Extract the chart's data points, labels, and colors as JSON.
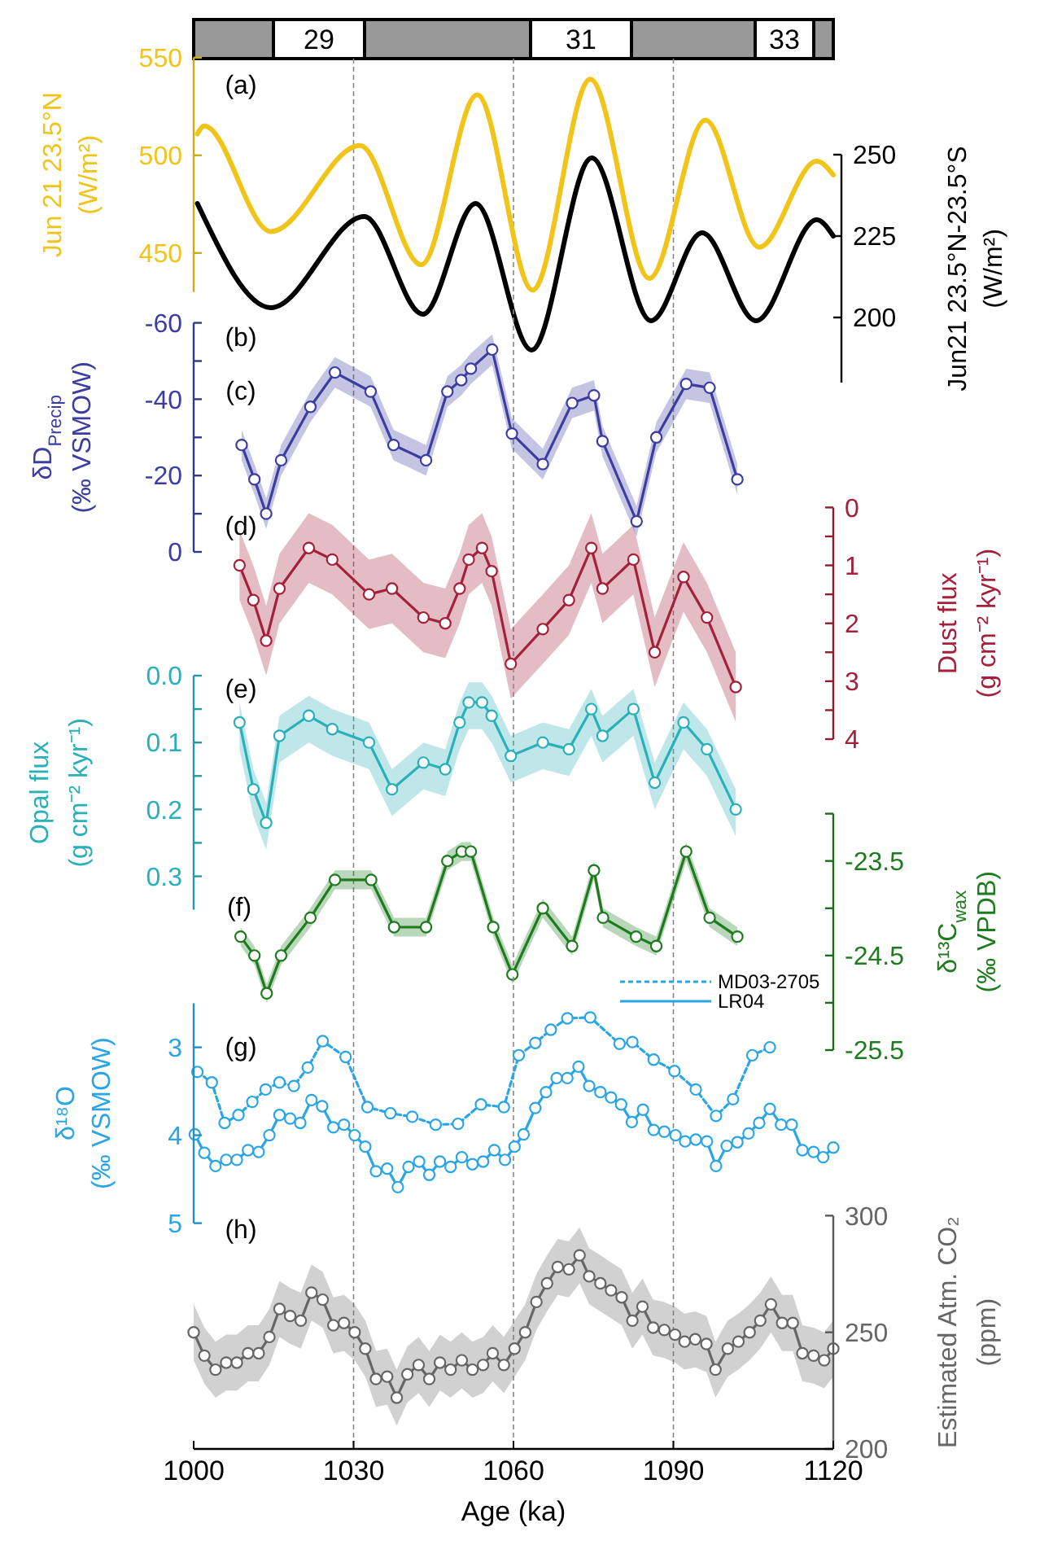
{
  "chart_data": [
    {
      "type": "other",
      "annotations": [
        "29",
        "31",
        "33"
      ]
    },
    {
      "type": "line",
      "xlim": [
        1000,
        1120
      ],
      "ylim": [
        430,
        550
      ],
      "yticks": [
        450,
        500,
        550
      ],
      "y2lim": [
        180,
        250
      ],
      "y2ticks": [
        200,
        225,
        250
      ],
      "ylabel": "Jun 21 23.5°N (W/m²)",
      "y2label": "Jun21 23.5°N-23.5°S (W/m²)",
      "tick_labels": "y",
      "annotations": [
        "(a)"
      ],
      "ref_lines": [
        {
          "axis": "x",
          "value": 1030,
          "color": "#888888",
          "line_style": "dashed"
        },
        {
          "axis": "x",
          "value": 1060,
          "color": "#888888",
          "line_style": "dashed"
        },
        {
          "axis": "x",
          "value": 1090,
          "color": "#888888",
          "line_style": "dashed"
        }
      ],
      "series": [
        {
          "color": "#f0c419",
          "x": [
            1000.7,
            1002,
            1014.5,
            1031.2,
            1042.7,
            1053.2,
            1063.6,
            1074.4,
            1085.5,
            1096,
            1106.1,
            1116.9,
            1120
          ],
          "values": [
            511,
            515,
            461,
            505,
            444,
            531,
            431,
            539,
            437,
            518,
            453,
            497,
            490
          ]
        },
        {
          "color": "#000000",
          "axis": "y2",
          "x": [
            1000.7,
            1014.5,
            1032,
            1043,
            1052.9,
            1063.4,
            1074.7,
            1085.8,
            1095.4,
            1105.5,
            1116.9,
            1120
          ],
          "values": [
            235,
            203,
            231,
            201,
            235,
            190,
            249,
            199,
            226,
            199,
            230,
            225
          ]
        }
      ]
    },
    {
      "type": "line",
      "xlim": [
        1000,
        1120
      ],
      "ylim": [
        0,
        -60
      ],
      "yticks": [
        -60,
        {
          "value": -50,
          "label": null
        },
        -40,
        {
          "value": -30,
          "label": null
        },
        -20,
        {
          "value": -10,
          "label": null
        },
        0
      ],
      "ylabel": "δD$_{Precip}$ (‰ VSMOW)",
      "tick_labels": "y",
      "marker": "circle",
      "annotations": [
        "(b)",
        "(c)"
      ],
      "ref_lines": [
        {
          "axis": "x",
          "value": 1030,
          "color": "#888888",
          "line_style": "dashed"
        },
        {
          "axis": "x",
          "value": 1060,
          "color": "#888888",
          "line_style": "dashed"
        },
        {
          "axis": "x",
          "value": 1090,
          "color": "#888888",
          "line_style": "dashed"
        }
      ],
      "series": [
        {
          "color": "#3b3ea0",
          "x": [
            1009,
            1011.4,
            1013.6,
            1016.4,
            1021.9,
            1026.5,
            1033.2,
            1037.5,
            1043.6,
            1047.6,
            1050.2,
            1052,
            1056,
            1059.7,
            1065.5,
            1071,
            1075.1,
            1076.7,
            1083.1,
            1086.8,
            1092.4,
            1096.8,
            1102
          ],
          "values": [
            -28,
            -19,
            -10,
            -24,
            -38,
            -47,
            -42,
            -28,
            -24,
            -42,
            -45,
            -48,
            -53,
            -31,
            -23,
            -39,
            -41,
            -29,
            -8,
            -30,
            -44,
            -43,
            -19
          ],
          "lower": [
            -32,
            -23,
            -14,
            -28,
            -42,
            -51,
            -46,
            -32,
            -28,
            -46,
            -49,
            -52,
            -57,
            -35,
            -27,
            -43,
            -45,
            -33,
            -12,
            -34,
            -48,
            -47,
            -23
          ],
          "upper": [
            -24,
            -15,
            -6,
            -20,
            -34,
            -43,
            -38,
            -24,
            -20,
            -38,
            -41,
            -44,
            -49,
            -27,
            -19,
            -35,
            -37,
            -25,
            -4,
            -26,
            -40,
            -39,
            -15
          ]
        }
      ]
    },
    {
      "type": "line",
      "xlim": [
        1000,
        1120
      ],
      "y2lim": [
        4,
        0
      ],
      "y2ticks": [
        0,
        {
          "value": 0.5,
          "label": null
        },
        1,
        {
          "value": 1.5,
          "label": null
        },
        2,
        {
          "value": 2.5,
          "label": null
        },
        3,
        {
          "value": 3.5,
          "label": null
        },
        4
      ],
      "y2label": "Dust flux (g cm⁻² kyr⁻¹)",
      "tick_labels": "y",
      "marker": "circle",
      "annotations": [
        "(d)"
      ],
      "ref_lines": [
        {
          "axis": "x",
          "value": 1030,
          "color": "#888888",
          "line_style": "dashed"
        },
        {
          "axis": "x",
          "value": 1060,
          "color": "#888888",
          "line_style": "dashed"
        },
        {
          "axis": "x",
          "value": 1090,
          "color": "#888888",
          "line_style": "dashed"
        }
      ],
      "series": [
        {
          "color": "#a3213a",
          "axis": "y2",
          "x": [
            1008.6,
            1011.2,
            1013.6,
            1016.1,
            1021.6,
            1026,
            1032.9,
            1037.2,
            1043.1,
            1047.2,
            1049.9,
            1051.6,
            1054.1,
            1055.9,
            1059.5,
            1065.5,
            1070.4,
            1074.6,
            1076.7,
            1082.5,
            1086.5,
            1091.9,
            1096.3,
            1101.7
          ],
          "values": [
            1.0,
            1.6,
            2.3,
            1.4,
            0.7,
            0.9,
            1.5,
            1.4,
            1.9,
            2.0,
            1.4,
            0.9,
            0.7,
            1.1,
            2.7,
            2.1,
            1.6,
            0.7,
            1.4,
            0.9,
            2.5,
            1.2,
            1.9,
            3.1
          ],
          "lower": [
            0.4,
            1.0,
            1.7,
            0.8,
            0.1,
            0.3,
            0.9,
            0.8,
            1.3,
            1.4,
            0.8,
            0.3,
            0.1,
            0.5,
            2.1,
            1.5,
            1.0,
            0.1,
            0.8,
            0.3,
            1.9,
            0.6,
            1.3,
            2.5
          ],
          "upper": [
            1.6,
            2.2,
            2.9,
            2.0,
            1.3,
            1.5,
            2.1,
            2.0,
            2.5,
            2.6,
            2.0,
            1.5,
            1.3,
            1.7,
            3.3,
            2.7,
            2.2,
            1.3,
            2.0,
            1.5,
            3.1,
            1.8,
            2.5,
            3.7
          ]
        }
      ]
    },
    {
      "type": "line",
      "xlim": [
        1000,
        1120
      ],
      "ylim": [
        0.35,
        0
      ],
      "yticks": [
        {
          "value": 0,
          "label": "0.0"
        },
        {
          "value": 0.05,
          "label": null
        },
        0.1,
        {
          "value": 0.15,
          "label": null
        },
        0.2,
        {
          "value": 0.25,
          "label": null
        },
        0.3
      ],
      "ylabel": "Opal flux (g cm⁻² kyr⁻¹)",
      "tick_labels": "y",
      "marker": "circle",
      "annotations": [
        "(e)"
      ],
      "ref_lines": [
        {
          "axis": "x",
          "value": 1030,
          "color": "#888888",
          "line_style": "dashed"
        },
        {
          "axis": "x",
          "value": 1060,
          "color": "#888888",
          "line_style": "dashed"
        },
        {
          "axis": "x",
          "value": 1090,
          "color": "#888888",
          "line_style": "dashed"
        }
      ],
      "series": [
        {
          "color": "#2ab0b8",
          "x": [
            1008.6,
            1011.2,
            1013.6,
            1016.1,
            1021.6,
            1026,
            1032.9,
            1037.2,
            1043.1,
            1047.2,
            1049.9,
            1051.6,
            1054.1,
            1055.9,
            1059.5,
            1065.5,
            1070.4,
            1074.6,
            1076.7,
            1082.5,
            1086.5,
            1091.9,
            1096.3,
            1101.7
          ],
          "values": [
            0.07,
            0.17,
            0.22,
            0.09,
            0.06,
            0.08,
            0.1,
            0.17,
            0.13,
            0.14,
            0.07,
            0.04,
            0.04,
            0.06,
            0.12,
            0.1,
            0.11,
            0.05,
            0.09,
            0.05,
            0.16,
            0.07,
            0.11,
            0.2
          ],
          "lower": [
            0.04,
            0.14,
            0.19,
            0.06,
            0.03,
            0.05,
            0.07,
            0.14,
            0.1,
            0.11,
            0.04,
            0.01,
            0.01,
            0.03,
            0.09,
            0.07,
            0.08,
            0.02,
            0.06,
            0.02,
            0.13,
            0.04,
            0.08,
            0.17
          ],
          "upper": [
            0.11,
            0.21,
            0.26,
            0.13,
            0.1,
            0.12,
            0.14,
            0.21,
            0.17,
            0.18,
            0.11,
            0.08,
            0.08,
            0.1,
            0.16,
            0.14,
            0.15,
            0.09,
            0.13,
            0.09,
            0.2,
            0.11,
            0.15,
            0.24
          ]
        }
      ]
    },
    {
      "type": "line",
      "xlim": [
        1000,
        1120
      ],
      "y2lim": [
        -25.5,
        -23
      ],
      "y2ticks": [
        {
          "value": -23,
          "label": null
        },
        -23.5,
        {
          "value": -24,
          "label": null
        },
        -24.5,
        {
          "value": -25,
          "label": null
        },
        -25.5
      ],
      "y2label": "δ¹³C$_{wax}$ (‰ VPDB)",
      "tick_labels": "y",
      "marker": "circle",
      "annotations": [
        "(f)"
      ],
      "ref_lines": [
        {
          "axis": "x",
          "value": 1030,
          "color": "#888888",
          "line_style": "dashed"
        },
        {
          "axis": "x",
          "value": 1060,
          "color": "#888888",
          "line_style": "dashed"
        },
        {
          "axis": "x",
          "value": 1090,
          "color": "#888888",
          "line_style": "dashed"
        }
      ],
      "series": [
        {
          "color": "#1e7b1e",
          "axis": "y2",
          "x": [
            1008.8,
            1011.4,
            1013.7,
            1016.4,
            1021.9,
            1026.5,
            1033.3,
            1037.6,
            1043.6,
            1047.6,
            1050.3,
            1052,
            1056.2,
            1059.8,
            1065.5,
            1071,
            1075.1,
            1076.8,
            1083,
            1086.8,
            1092.4,
            1096.8,
            1102
          ],
          "values": [
            -24.3,
            -24.5,
            -24.9,
            -24.5,
            -24.1,
            -23.7,
            -23.7,
            -24.2,
            -24.2,
            -23.5,
            -23.4,
            -23.4,
            -24.2,
            -24.7,
            -24.0,
            -24.4,
            -23.6,
            -24.1,
            -24.3,
            -24.4,
            -23.4,
            -24.1,
            -24.3
          ],
          "lower": [
            -24.4,
            -24.6,
            -25.0,
            -24.6,
            -24.2,
            -23.8,
            -23.8,
            -24.3,
            -24.3,
            -23.6,
            -23.5,
            -23.5,
            -24.3,
            -24.8,
            -24.1,
            -24.5,
            -23.7,
            -24.2,
            -24.4,
            -24.5,
            -23.5,
            -24.2,
            -24.4
          ],
          "upper": [
            -24.2,
            -24.4,
            -24.8,
            -24.4,
            -24.0,
            -23.6,
            -23.6,
            -24.1,
            -24.1,
            -23.4,
            -23.3,
            -23.3,
            -24.1,
            -24.6,
            -23.9,
            -24.3,
            -23.5,
            -24.0,
            -24.2,
            -24.3,
            -23.3,
            -24.0,
            -24.2
          ]
        }
      ]
    },
    {
      "type": "line",
      "xlim": [
        1000,
        1120
      ],
      "ylim": [
        5,
        2.5
      ],
      "yticks": [
        3,
        4,
        5
      ],
      "ylabel": "δ¹⁸O (‰ VSMOW)",
      "tick_labels": "y",
      "marker": "circle",
      "legend": "top right",
      "annotations": [
        "(g)"
      ],
      "ref_lines": [
        {
          "axis": "x",
          "value": 1030,
          "color": "#888888",
          "line_style": "dashed"
        },
        {
          "axis": "x",
          "value": 1060,
          "color": "#888888",
          "line_style": "dashed"
        },
        {
          "axis": "x",
          "value": 1090,
          "color": "#888888",
          "line_style": "dashed"
        }
      ],
      "series": [
        {
          "name": "MD03-2705",
          "color": "#2aa5e6",
          "line_style": "dashed",
          "x": [
            1000.7,
            1003.4,
            1005.8,
            1008.4,
            1011,
            1013.5,
            1016.1,
            1018.8,
            1021.4,
            1024.2,
            1028.5,
            1032.6,
            1036.9,
            1041,
            1045.4,
            1049.6,
            1053.9,
            1058.2,
            1061,
            1064.1,
            1067,
            1070.1,
            1074.4,
            1079.9,
            1082.3,
            1086.3,
            1090.2,
            1094.2,
            1098,
            1101.2,
            1104.8,
            1108.1
          ],
          "values": [
            3.28,
            3.4,
            3.86,
            3.77,
            3.62,
            3.48,
            3.4,
            3.44,
            3.23,
            2.93,
            3.11,
            3.68,
            3.75,
            3.79,
            3.88,
            3.87,
            3.65,
            3.68,
            3.09,
            2.95,
            2.8,
            2.67,
            2.66,
            2.96,
            2.94,
            3.14,
            3.27,
            3.48,
            3.78,
            3.59,
            3.09,
            3.0
          ]
        },
        {
          "name": "LR04",
          "color": "#2aa5e6",
          "line_style": "solid",
          "x": [
            1000.2,
            1002,
            1004.1,
            1006.1,
            1008.1,
            1010.2,
            1012.2,
            1014.2,
            1016.1,
            1018.1,
            1020,
            1022.1,
            1024.1,
            1026.2,
            1028.2,
            1030.2,
            1032.2,
            1034.2,
            1036.3,
            1038.3,
            1040.3,
            1042.3,
            1044.2,
            1046.2,
            1048.2,
            1050.3,
            1052.3,
            1054.3,
            1056.4,
            1058.4,
            1060.2,
            1061.9,
            1064.1,
            1066.1,
            1068.1,
            1070.1,
            1072.2,
            1074.2,
            1076.3,
            1078.3,
            1080.2,
            1082.2,
            1084.3,
            1086.3,
            1088.3,
            1090.4,
            1092.2,
            1094.2,
            1096.3,
            1098,
            1100,
            1102,
            1104.1,
            1106.1,
            1108.1,
            1110.2,
            1112.2,
            1114.2,
            1116.3,
            1118.1,
            1120
          ],
          "values": [
            3.99,
            4.2,
            4.35,
            4.28,
            4.28,
            4.17,
            4.19,
            4.0,
            3.77,
            3.81,
            3.86,
            3.6,
            3.67,
            3.91,
            3.88,
            4.0,
            4.13,
            4.41,
            4.38,
            4.59,
            4.36,
            4.3,
            4.45,
            4.3,
            4.36,
            4.25,
            4.33,
            4.3,
            4.17,
            4.28,
            4.13,
            3.99,
            3.69,
            3.51,
            3.35,
            3.35,
            3.22,
            3.44,
            3.51,
            3.57,
            3.65,
            3.85,
            3.71,
            3.94,
            3.96,
            4.0,
            4.07,
            4.05,
            4.07,
            4.35,
            4.12,
            4.08,
            3.98,
            3.86,
            3.7,
            3.88,
            3.88,
            4.17,
            4.19,
            4.25,
            4.14
          ]
        }
      ]
    },
    {
      "type": "line",
      "xlim": [
        1000,
        1120
      ],
      "xticks": [
        1000,
        1030,
        1060,
        1090,
        1120
      ],
      "xlabel": "Age (ka)",
      "y2lim": [
        200,
        300
      ],
      "y2ticks": [
        200,
        250,
        300
      ],
      "y2label": "Estimated Atm. CO₂ (ppm)",
      "marker": "circle",
      "annotations": [
        "(h)"
      ],
      "ref_lines": [
        {
          "axis": "x",
          "value": 1030,
          "color": "#888888",
          "line_style": "dashed"
        },
        {
          "axis": "x",
          "value": 1060,
          "color": "#888888",
          "line_style": "dashed"
        },
        {
          "axis": "x",
          "value": 1090,
          "color": "#888888",
          "line_style": "dashed"
        }
      ],
      "series": [
        {
          "color": "#666666",
          "axis": "y2",
          "x": [
            1000,
            1002,
            1004.1,
            1006.1,
            1008.1,
            1010.2,
            1012.2,
            1014.2,
            1016.1,
            1018.1,
            1020.1,
            1022.1,
            1024.2,
            1026.2,
            1028.2,
            1030.2,
            1032.2,
            1034.2,
            1036.3,
            1038.1,
            1040.1,
            1042.2,
            1044.2,
            1046.2,
            1048.2,
            1050.3,
            1052.3,
            1054.3,
            1056.1,
            1058.2,
            1060.2,
            1062.2,
            1064.3,
            1066.3,
            1068.3,
            1070.4,
            1072.4,
            1074.2,
            1076.3,
            1078.3,
            1080.3,
            1082.3,
            1084.2,
            1086.2,
            1088.3,
            1090.3,
            1092.1,
            1094.1,
            1096.2,
            1097.9,
            1100.2,
            1102.2,
            1104.3,
            1106.3,
            1108.3,
            1110.4,
            1112.4,
            1114.2,
            1116.3,
            1118.3,
            1120
          ],
          "values": [
            250,
            240,
            234,
            237,
            237,
            241,
            241,
            248,
            260,
            257,
            255,
            267,
            264,
            253,
            254,
            250,
            243,
            230,
            231,
            222,
            232,
            236,
            230,
            237,
            234,
            238,
            234,
            236,
            241,
            236,
            243,
            250,
            263,
            271,
            278,
            277,
            283,
            274,
            271,
            268,
            265,
            255,
            261,
            252,
            251,
            249,
            246,
            247,
            245,
            234,
            243,
            246,
            250,
            255,
            262,
            254,
            254,
            241,
            240,
            238,
            243
          ],
          "lower": [
            238,
            228,
            222,
            225,
            225,
            229,
            229,
            236,
            248,
            245,
            243,
            255,
            252,
            241,
            242,
            238,
            231,
            218,
            219,
            210,
            220,
            224,
            218,
            225,
            222,
            226,
            222,
            224,
            229,
            224,
            231,
            238,
            251,
            259,
            266,
            265,
            271,
            262,
            259,
            256,
            253,
            243,
            249,
            240,
            239,
            237,
            234,
            235,
            233,
            222,
            231,
            234,
            238,
            243,
            250,
            242,
            242,
            229,
            228,
            226,
            231
          ],
          "upper": [
            262,
            252,
            246,
            249,
            249,
            253,
            253,
            260,
            272,
            269,
            267,
            279,
            276,
            265,
            266,
            262,
            255,
            242,
            243,
            234,
            244,
            248,
            242,
            249,
            246,
            250,
            246,
            248,
            253,
            248,
            255,
            262,
            275,
            283,
            290,
            289,
            295,
            286,
            283,
            280,
            277,
            267,
            273,
            264,
            263,
            261,
            258,
            259,
            257,
            246,
            255,
            258,
            262,
            267,
            274,
            266,
            266,
            253,
            252,
            250,
            255
          ]
        }
      ]
    }
  ]
}
